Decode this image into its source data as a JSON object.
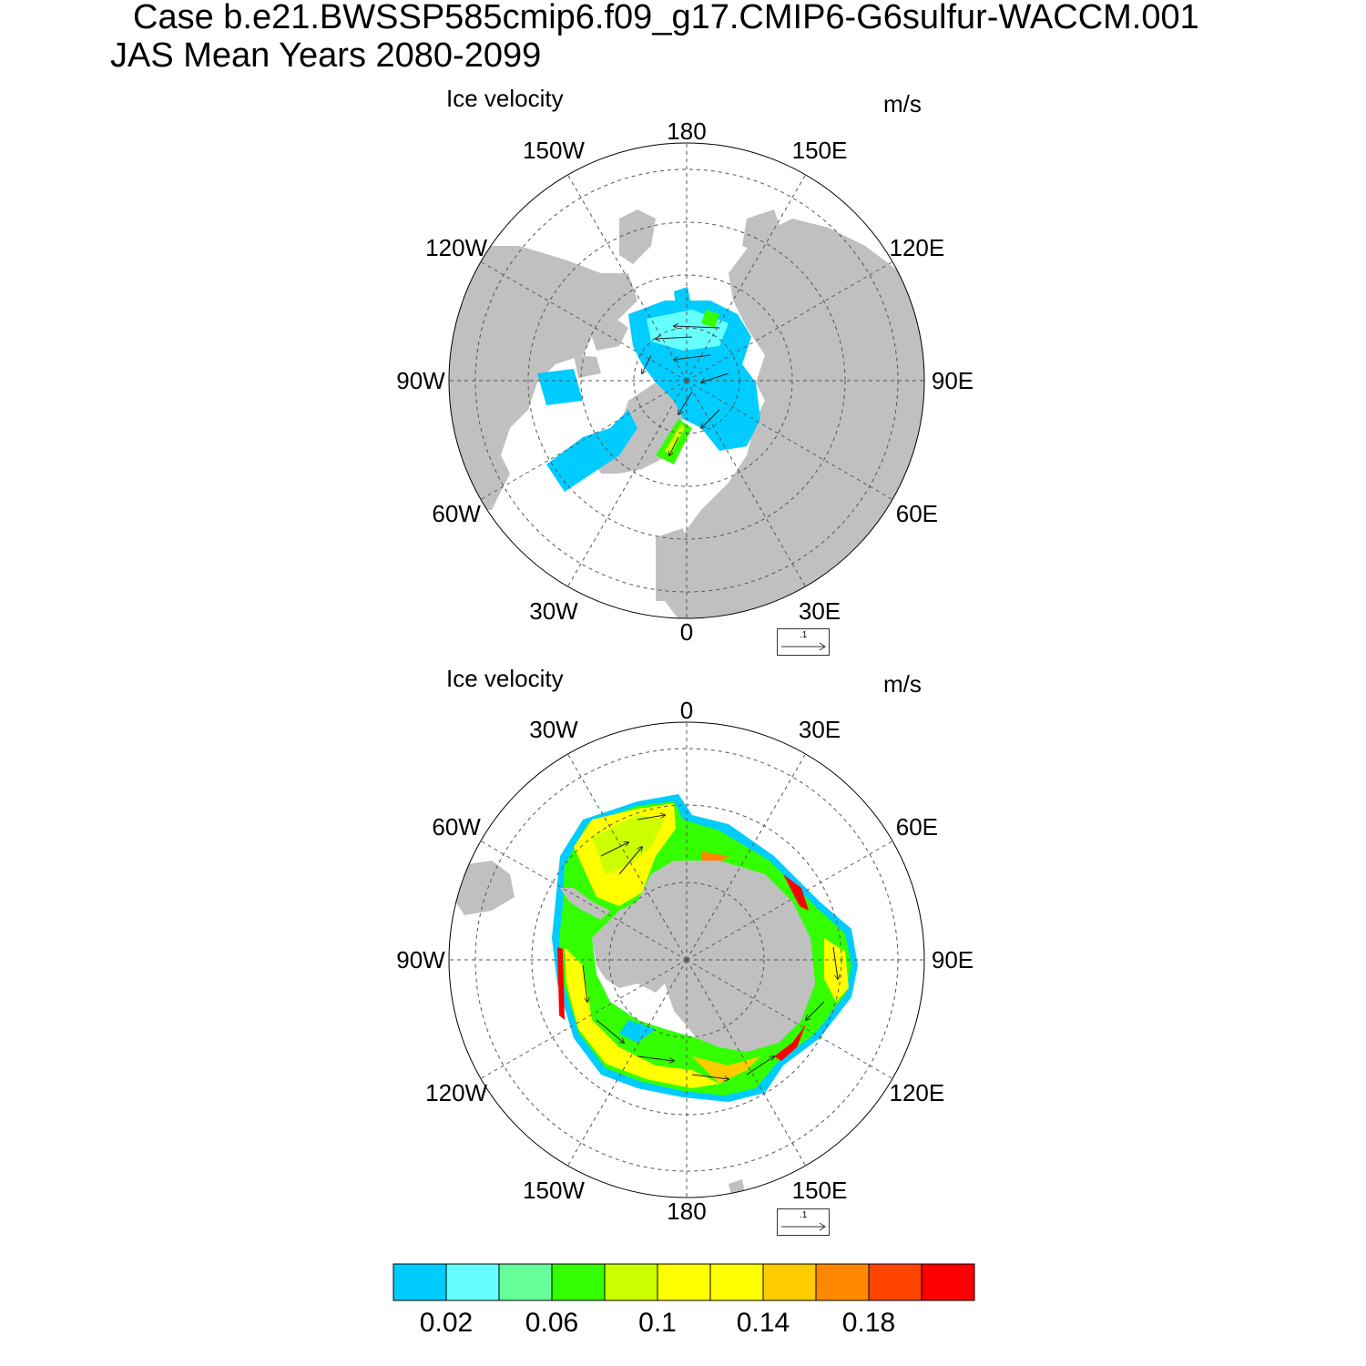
{
  "header": {
    "case_line": "Case b.e21.BWSSP585cmip6.f09_g17.CMIP6-G6sulfur-WACCM.001",
    "period_line": "JAS Mean   Years 2080-2099"
  },
  "panels": [
    {
      "id": "north",
      "title": "Ice velocity",
      "units": "m/s",
      "ref_vector_label": ".1",
      "lon_labels": [
        "180",
        "150E",
        "120E",
        "90E",
        "60E",
        "30E",
        "0",
        "30W",
        "60W",
        "90W",
        "120W",
        "150W"
      ]
    },
    {
      "id": "south",
      "title": "Ice velocity",
      "units": "m/s",
      "ref_vector_label": ".1",
      "lon_labels": [
        "0",
        "30E",
        "60E",
        "90E",
        "120E",
        "150E",
        "180",
        "150W",
        "120W",
        "90W",
        "60W",
        "30W"
      ]
    }
  ],
  "colorbar": {
    "colors": [
      "#00ccff",
      "#66ffff",
      "#66ff99",
      "#33ff00",
      "#ccff00",
      "#ffff00",
      "#ffff00",
      "#ffcc00",
      "#ff8800",
      "#ff4400",
      "#ff0000"
    ],
    "tick_labels": [
      "0.02",
      "0.06",
      "0.1",
      "0.14",
      "0.18"
    ],
    "land_color": "#c0c0c0"
  }
}
